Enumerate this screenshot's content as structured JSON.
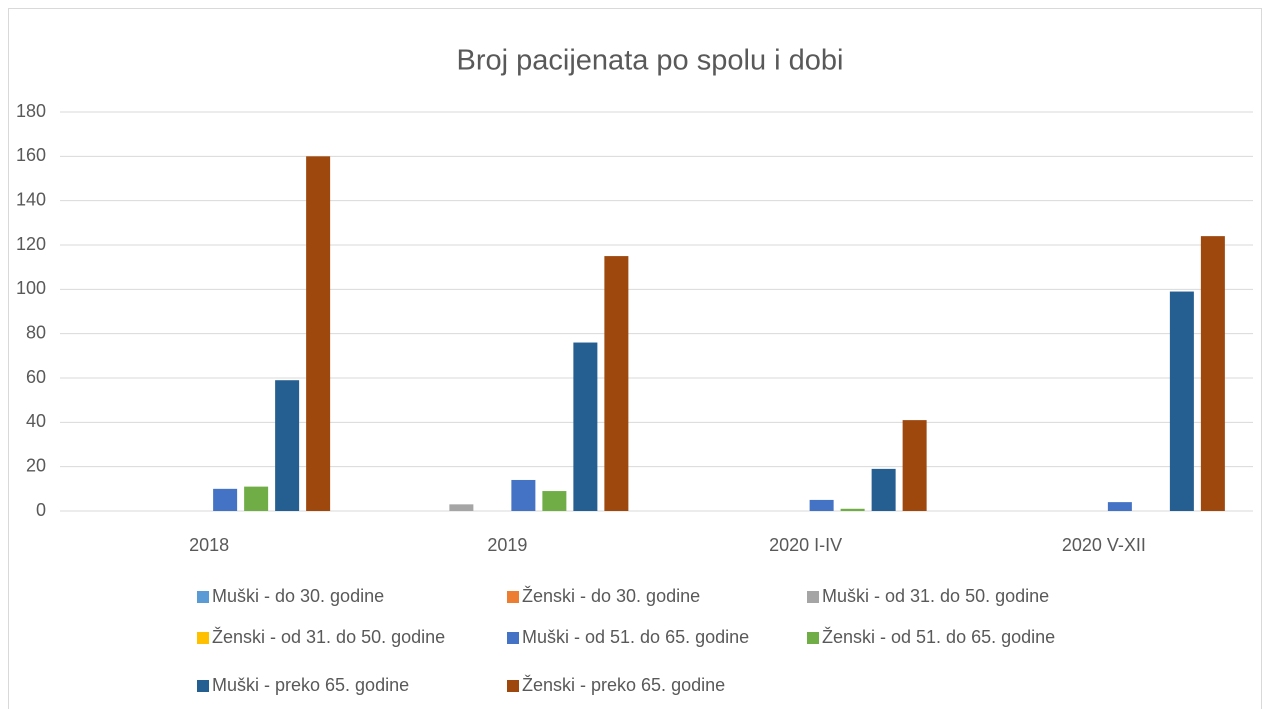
{
  "chart_data": {
    "type": "bar",
    "title": "Broj pacijenata po spolu i dobi",
    "categories": [
      "2018",
      "2019",
      "2020 I-IV",
      "2020 V-XII"
    ],
    "series": [
      {
        "name": "Muški - do 30. godine",
        "color": "#5b9bd5",
        "values": [
          0,
          0,
          0,
          0
        ]
      },
      {
        "name": "Ženski - do 30. godine",
        "color": "#ed7d31",
        "values": [
          0,
          0,
          0,
          0
        ]
      },
      {
        "name": "Muški - od 31. do 50. godine",
        "color": "#a5a5a5",
        "values": [
          0,
          3,
          0,
          0
        ]
      },
      {
        "name": "Ženski - od 31. do 50. godine",
        "color": "#ffc000",
        "values": [
          0,
          0,
          0,
          0
        ]
      },
      {
        "name": "Muški - od 51. do 65. godine",
        "color": "#4472c4",
        "values": [
          10,
          14,
          5,
          4
        ]
      },
      {
        "name": "Ženski - od 51. do 65. godine",
        "color": "#70ad47",
        "values": [
          11,
          9,
          1,
          0
        ]
      },
      {
        "name": "Muški - preko 65. godine",
        "color": "#255e91",
        "values": [
          59,
          76,
          19,
          99
        ]
      },
      {
        "name": "Ženski - preko 65. godine",
        "color": "#9e480e",
        "values": [
          160,
          115,
          41,
          124
        ]
      }
    ],
    "ylim": [
      0,
      180
    ],
    "yticks": [
      0,
      20,
      40,
      60,
      80,
      100,
      120,
      140,
      160,
      180
    ],
    "grid": true,
    "legend": "bottom"
  }
}
